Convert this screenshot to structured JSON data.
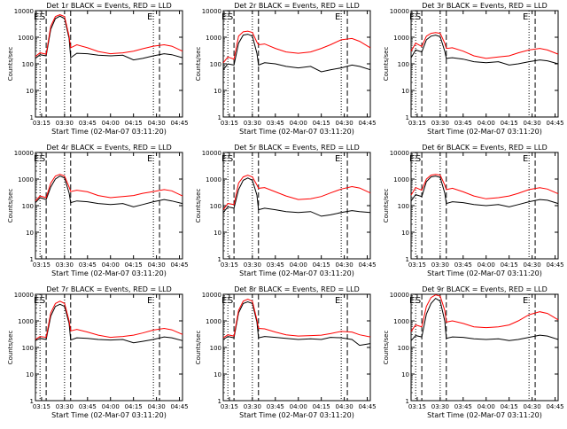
{
  "colors": {
    "background": "#ffffff",
    "events": "#000000",
    "lld": "#ff0000",
    "axes": "#000000"
  },
  "shared": {
    "xlabel": "Start Time (02-Mar-07 03:11:20)",
    "ylabel": "Counts/sec",
    "x_tick_labels": [
      "03:15",
      "03:30",
      "03:45",
      "04:00",
      "04:15",
      "04:30",
      "04:45"
    ],
    "y_tick_labels": [
      "1",
      "10",
      "100",
      "1000",
      "10000"
    ],
    "markers": [
      {
        "label": "E",
        "time": "03:14",
        "style": "dotted"
      },
      {
        "label": "S",
        "time": "03:18",
        "style": "dashed"
      },
      {
        "label": "",
        "time": "03:30",
        "style": "dotted"
      },
      {
        "label": "",
        "time": "03:34",
        "style": "dashed"
      },
      {
        "label": "E",
        "time": "04:28",
        "style": "dotted"
      },
      {
        "label": "",
        "time": "04:32",
        "style": "dashed"
      }
    ]
  },
  "chart_data": [
    {
      "type": "line",
      "title": "Det 1r BLACK = Events, RED = LLD",
      "y_scale": "log",
      "ylim": [
        1,
        10000
      ],
      "x": [
        "03:11",
        "03:14",
        "03:18",
        "03:21",
        "03:24",
        "03:27",
        "03:30",
        "03:33",
        "03:34",
        "03:38",
        "03:45",
        "03:52",
        "04:00",
        "04:08",
        "04:15",
        "04:21",
        "04:28",
        "04:35",
        "04:40",
        "04:47"
      ],
      "series": [
        {
          "name": "Events",
          "color": "#000000",
          "values": [
            160,
            220,
            200,
            2000,
            5000,
            6200,
            5000,
            900,
            170,
            250,
            240,
            210,
            200,
            210,
            140,
            160,
            200,
            240,
            220,
            170
          ]
        },
        {
          "name": "LLD",
          "color": "#ff0000",
          "values": [
            190,
            260,
            230,
            2600,
            6000,
            7000,
            6000,
            1100,
            400,
            520,
            400,
            290,
            240,
            260,
            300,
            370,
            460,
            520,
            460,
            300
          ]
        }
      ]
    },
    {
      "type": "line",
      "title": "Det 2r BLACK = Events, RED = LLD",
      "y_scale": "log",
      "ylim": [
        1,
        10000
      ],
      "x": [
        "03:11",
        "03:14",
        "03:18",
        "03:21",
        "03:24",
        "03:27",
        "03:30",
        "03:33",
        "03:34",
        "03:38",
        "03:45",
        "03:52",
        "04:00",
        "04:08",
        "04:15",
        "04:21",
        "04:28",
        "04:35",
        "04:40",
        "04:47"
      ],
      "series": [
        {
          "name": "Events",
          "color": "#000000",
          "values": [
            60,
            100,
            90,
            600,
            1200,
            1300,
            1100,
            250,
            90,
            110,
            100,
            80,
            70,
            80,
            50,
            60,
            70,
            90,
            80,
            60
          ]
        },
        {
          "name": "LLD",
          "color": "#ff0000",
          "values": [
            110,
            180,
            150,
            1100,
            1600,
            1700,
            1500,
            650,
            520,
            560,
            380,
            280,
            250,
            280,
            380,
            520,
            800,
            900,
            700,
            400
          ]
        }
      ]
    },
    {
      "type": "line",
      "title": "Det 3r BLACK = Events, RED = LLD",
      "y_scale": "log",
      "ylim": [
        1,
        10000
      ],
      "x": [
        "03:11",
        "03:14",
        "03:18",
        "03:21",
        "03:24",
        "03:27",
        "03:30",
        "03:33",
        "03:34",
        "03:38",
        "03:45",
        "03:52",
        "04:00",
        "04:08",
        "04:15",
        "04:21",
        "04:28",
        "04:35",
        "04:40",
        "04:47"
      ],
      "series": [
        {
          "name": "Events",
          "color": "#000000",
          "values": [
            170,
            330,
            280,
            800,
            1100,
            1200,
            1050,
            300,
            160,
            170,
            150,
            120,
            110,
            120,
            90,
            100,
            120,
            140,
            130,
            100
          ]
        },
        {
          "name": "LLD",
          "color": "#ff0000",
          "values": [
            300,
            600,
            450,
            1100,
            1400,
            1500,
            1400,
            600,
            380,
            400,
            300,
            200,
            160,
            180,
            200,
            260,
            330,
            380,
            330,
            230
          ]
        }
      ]
    },
    {
      "type": "line",
      "title": "Det 4r BLACK = Events, RED = LLD",
      "y_scale": "log",
      "ylim": [
        1,
        10000
      ],
      "x": [
        "03:11",
        "03:14",
        "03:18",
        "03:21",
        "03:24",
        "03:27",
        "03:30",
        "03:33",
        "03:34",
        "03:38",
        "03:45",
        "03:52",
        "04:00",
        "04:08",
        "04:15",
        "04:21",
        "04:28",
        "04:35",
        "04:40",
        "04:47"
      ],
      "series": [
        {
          "name": "Events",
          "color": "#000000",
          "values": [
            130,
            200,
            170,
            500,
            1000,
            1300,
            1100,
            300,
            130,
            150,
            140,
            120,
            110,
            120,
            90,
            110,
            140,
            170,
            150,
            120
          ]
        },
        {
          "name": "LLD",
          "color": "#ff0000",
          "values": [
            150,
            230,
            200,
            700,
            1300,
            1500,
            1300,
            500,
            340,
            380,
            330,
            240,
            200,
            220,
            240,
            290,
            340,
            400,
            360,
            230
          ]
        }
      ]
    },
    {
      "type": "line",
      "title": "Det 5r BLACK = Events, RED = LLD",
      "y_scale": "log",
      "ylim": [
        1,
        10000
      ],
      "x": [
        "03:11",
        "03:14",
        "03:18",
        "03:21",
        "03:24",
        "03:27",
        "03:30",
        "03:33",
        "03:34",
        "03:38",
        "03:45",
        "03:52",
        "04:00",
        "04:08",
        "04:15",
        "04:21",
        "04:28",
        "04:35",
        "04:40",
        "04:47"
      ],
      "series": [
        {
          "name": "Events",
          "color": "#000000",
          "values": [
            55,
            90,
            80,
            400,
            900,
            1100,
            900,
            250,
            70,
            80,
            70,
            60,
            55,
            60,
            40,
            45,
            55,
            65,
            60,
            55
          ]
        },
        {
          "name": "LLD",
          "color": "#ff0000",
          "values": [
            70,
            120,
            110,
            700,
            1200,
            1400,
            1200,
            600,
            450,
            480,
            330,
            230,
            170,
            180,
            220,
            300,
            420,
            520,
            460,
            300
          ]
        }
      ]
    },
    {
      "type": "line",
      "title": "Det 6r BLACK = Events, RED = LLD",
      "y_scale": "log",
      "ylim": [
        1,
        10000
      ],
      "x": [
        "03:11",
        "03:14",
        "03:18",
        "03:21",
        "03:24",
        "03:27",
        "03:30",
        "03:33",
        "03:34",
        "03:38",
        "03:45",
        "03:52",
        "04:00",
        "04:08",
        "04:15",
        "04:21",
        "04:28",
        "04:35",
        "04:40",
        "04:47"
      ],
      "series": [
        {
          "name": "Events",
          "color": "#000000",
          "values": [
            150,
            260,
            220,
            800,
            1200,
            1300,
            1150,
            300,
            120,
            140,
            130,
            110,
            100,
            110,
            90,
            110,
            140,
            170,
            160,
            120
          ]
        },
        {
          "name": "LLD",
          "color": "#ff0000",
          "values": [
            250,
            480,
            380,
            1000,
            1400,
            1500,
            1400,
            600,
            400,
            450,
            330,
            230,
            180,
            200,
            230,
            290,
            400,
            470,
            420,
            280
          ]
        }
      ]
    },
    {
      "type": "line",
      "title": "Det 7r BLACK = Events, RED = LLD",
      "y_scale": "log",
      "ylim": [
        1,
        10000
      ],
      "x": [
        "03:11",
        "03:14",
        "03:18",
        "03:21",
        "03:24",
        "03:27",
        "03:30",
        "03:33",
        "03:34",
        "03:38",
        "03:45",
        "03:52",
        "04:00",
        "04:08",
        "04:15",
        "04:21",
        "04:28",
        "04:35",
        "04:40",
        "04:47"
      ],
      "series": [
        {
          "name": "Events",
          "color": "#000000",
          "values": [
            180,
            220,
            200,
            1500,
            3500,
            4200,
            3500,
            800,
            190,
            230,
            220,
            200,
            190,
            200,
            150,
            170,
            200,
            250,
            230,
            180
          ]
        },
        {
          "name": "LLD",
          "color": "#ff0000",
          "values": [
            200,
            260,
            240,
            2000,
            4500,
            5500,
            4500,
            1000,
            420,
            480,
            380,
            290,
            240,
            260,
            290,
            350,
            450,
            520,
            460,
            310
          ]
        }
      ]
    },
    {
      "type": "line",
      "title": "Det 8r BLACK = Events, RED = LLD",
      "y_scale": "log",
      "ylim": [
        1,
        10000
      ],
      "x": [
        "03:11",
        "03:14",
        "03:18",
        "03:21",
        "03:24",
        "03:27",
        "03:30",
        "03:33",
        "03:34",
        "03:38",
        "03:45",
        "03:52",
        "04:00",
        "04:08",
        "04:15",
        "04:21",
        "04:28",
        "04:35",
        "04:40",
        "04:47"
      ],
      "series": [
        {
          "name": "Events",
          "color": "#000000",
          "values": [
            200,
            260,
            230,
            2000,
            4500,
            5200,
            4500,
            900,
            230,
            260,
            240,
            220,
            200,
            210,
            200,
            240,
            230,
            200,
            120,
            140
          ]
        },
        {
          "name": "LLD",
          "color": "#ff0000",
          "values": [
            230,
            300,
            270,
            2500,
            5500,
            6500,
            5500,
            1100,
            520,
            500,
            380,
            300,
            270,
            280,
            290,
            330,
            400,
            380,
            300,
            250
          ]
        }
      ]
    },
    {
      "type": "line",
      "title": "Det 9r BLACK = Events, RED = LLD",
      "y_scale": "log",
      "ylim": [
        1,
        10000
      ],
      "x": [
        "03:11",
        "03:14",
        "03:18",
        "03:21",
        "03:24",
        "03:27",
        "03:30",
        "03:33",
        "03:34",
        "03:38",
        "03:45",
        "03:52",
        "04:00",
        "04:08",
        "04:15",
        "04:21",
        "04:28",
        "04:35",
        "04:40",
        "04:47"
      ],
      "series": [
        {
          "name": "Events",
          "color": "#000000",
          "values": [
            180,
            280,
            250,
            1800,
            4500,
            7000,
            5500,
            1000,
            220,
            250,
            240,
            210,
            200,
            210,
            180,
            200,
            240,
            290,
            270,
            200
          ]
        },
        {
          "name": "LLD",
          "color": "#ff0000",
          "values": [
            400,
            700,
            600,
            3500,
            7500,
            9500,
            8500,
            2500,
            900,
            1000,
            800,
            600,
            560,
            600,
            700,
            1000,
            1700,
            2200,
            1900,
            1100
          ]
        }
      ]
    }
  ]
}
